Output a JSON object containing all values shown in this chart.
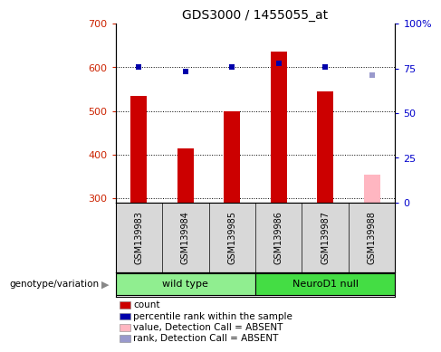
{
  "title": "GDS3000 / 1455055_at",
  "samples": [
    "GSM139983",
    "GSM139984",
    "GSM139985",
    "GSM139986",
    "GSM139987",
    "GSM139988"
  ],
  "count_values": [
    535,
    415,
    500,
    635,
    545,
    355
  ],
  "percentile_values": [
    76,
    73,
    76,
    78,
    76,
    71
  ],
  "absent_flags": [
    false,
    false,
    false,
    false,
    false,
    true
  ],
  "bar_bottom": 290,
  "left_ylim": [
    290,
    700
  ],
  "right_ylim": [
    0,
    100
  ],
  "left_yticks": [
    300,
    400,
    500,
    600,
    700
  ],
  "right_yticks": [
    0,
    25,
    50,
    75,
    100
  ],
  "right_yticklabels": [
    "0",
    "25",
    "50",
    "75",
    "100%"
  ],
  "count_color": "#CC0000",
  "absent_bar_color": "#FFB6C1",
  "percentile_color": "#0000AA",
  "absent_rank_color": "#9999CC",
  "group0_color": "#90EE90",
  "group1_color": "#44DD44",
  "groups": [
    {
      "label": "wild type",
      "indices": [
        0,
        1,
        2
      ],
      "color": "#90EE90"
    },
    {
      "label": "NeuroD1 null",
      "indices": [
        3,
        4,
        5
      ],
      "color": "#44DD44"
    }
  ],
  "group_label": "genotype/variation",
  "left_axis_color": "#CC2200",
  "right_axis_color": "#0000CC",
  "sample_box_color": "#D8D8D8",
  "gridline_yticks": [
    300,
    400,
    500,
    600
  ],
  "title_fontsize": 10,
  "tick_fontsize": 8,
  "label_fontsize": 7,
  "legend_fontsize": 7.5
}
